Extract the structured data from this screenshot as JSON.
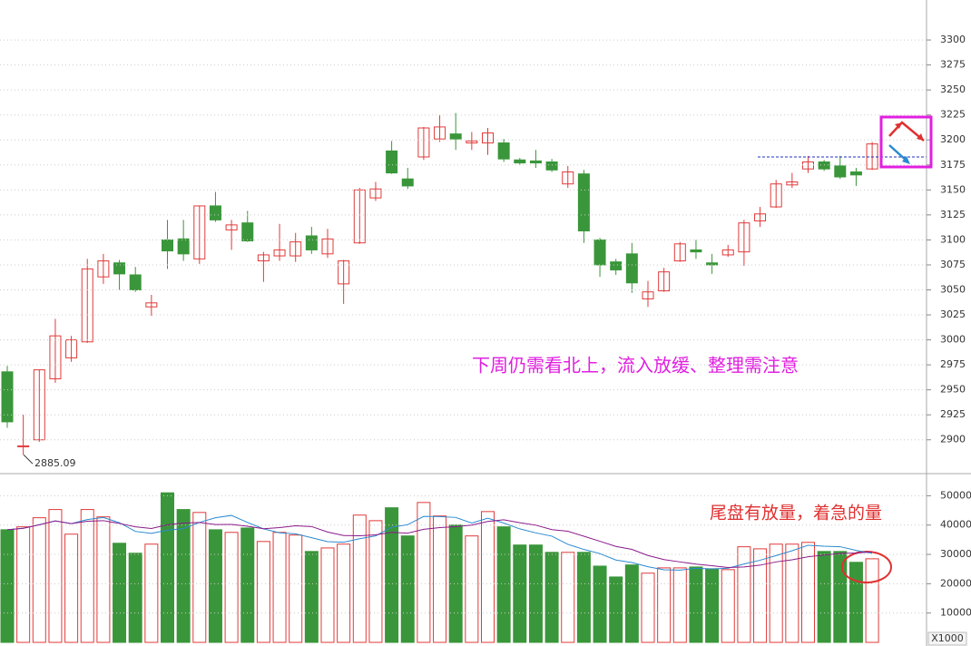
{
  "chart_data": [
    {
      "type": "candlestick",
      "open": [
        2968,
        2893,
        2900,
        2961,
        2982,
        2998,
        3063,
        3077,
        3065,
        3033,
        3100,
        3101,
        3081,
        3134,
        3110,
        3117,
        3079,
        3084,
        3084,
        3104,
        3086,
        3056,
        3097,
        3142,
        3189,
        3161,
        3183,
        3201,
        3206,
        3197,
        3197,
        3197,
        3180,
        3179,
        3178,
        3156,
        3166,
        3100,
        3078,
        3086,
        3041,
        3049,
        3079,
        3090,
        3077,
        3085,
        3088,
        3119,
        3133,
        3155,
        3171,
        3178,
        3174,
        3168,
        3171
      ],
      "high": [
        2974,
        2925,
        2970,
        3021,
        3004,
        3081,
        3086,
        3080,
        3073,
        3045,
        3120,
        3120,
        3134,
        3148,
        3120,
        3129,
        3088,
        3116,
        3107,
        3113,
        3111,
        3080,
        3152,
        3158,
        3199,
        3172,
        3213,
        3225,
        3227,
        3208,
        3212,
        3201,
        3182,
        3190,
        3181,
        3174,
        3170,
        3102,
        3081,
        3097,
        3059,
        3072,
        3098,
        3100,
        3086,
        3095,
        3120,
        3133,
        3160,
        3167,
        3184,
        3180,
        3184,
        3172,
        3198
      ],
      "low": [
        2912,
        2885.09,
        2898,
        2957,
        2978,
        2997,
        3056,
        3050,
        3048,
        3024,
        3071,
        3079,
        3076,
        3118,
        3090,
        3098,
        3058,
        3079,
        3078,
        3086,
        3082,
        3036,
        3096,
        3139,
        3166,
        3151,
        3180,
        3198,
        3190,
        3190,
        3185,
        3178,
        3175,
        3172,
        3168,
        3152,
        3097,
        3063,
        3065,
        3047,
        3033,
        3048,
        3078,
        3081,
        3066,
        3083,
        3074,
        3113,
        3132,
        3152,
        3167,
        3169,
        3161,
        3154,
        3170
      ],
      "close": [
        2918,
        2894,
        2970,
        3004,
        3000,
        3071,
        3079,
        3066,
        3050,
        3037,
        3089,
        3086,
        3134,
        3120,
        3115,
        3099,
        3085,
        3090,
        3098,
        3090,
        3101,
        3079,
        3150,
        3151,
        3167,
        3154,
        3212,
        3213,
        3201,
        3199,
        3207,
        3181,
        3177,
        3177,
        3170,
        3168,
        3109,
        3075,
        3070,
        3057,
        3048,
        3068,
        3096,
        3088,
        3075,
        3090,
        3117,
        3126,
        3156,
        3158,
        3178,
        3171,
        3163,
        3165,
        3196
      ],
      "up_color": "#e03a3a",
      "down_color": "#3a963a",
      "ylim": [
        2868,
        3340
      ],
      "yticks": [
        2900,
        2925,
        2950,
        2975,
        3000,
        3025,
        3050,
        3075,
        3100,
        3125,
        3150,
        3175,
        3200,
        3225,
        3250,
        3275,
        3300
      ],
      "grid": true,
      "reference_level": 3183,
      "annotation": "下周仍需看北上，流入放缓、整理需注意"
    },
    {
      "type": "bar",
      "values": [
        38400,
        39400,
        42500,
        45300,
        36900,
        45300,
        42800,
        33800,
        30400,
        33500,
        51000,
        45300,
        44300,
        38400,
        37500,
        39000,
        34400,
        37500,
        36600,
        31000,
        32200,
        33500,
        43400,
        41500,
        45900,
        36300,
        47700,
        43100,
        40000,
        36300,
        44600,
        39400,
        33200,
        33200,
        30700,
        30700,
        30700,
        26000,
        22300,
        26400,
        23600,
        25400,
        25400,
        25700,
        25100,
        24800,
        32600,
        31900,
        33500,
        33500,
        34100,
        31000,
        31000,
        27300,
        28500
      ],
      "ylim": [
        0,
        56000
      ],
      "yticks": [
        10000,
        20000,
        30000,
        40000,
        50000
      ],
      "unit_label": "X1000",
      "grid": true,
      "ma_colors": [
        "#2a8ad0",
        "#8a1a8a"
      ],
      "annotation": "尾盘有放量，着急的量"
    }
  ]
}
